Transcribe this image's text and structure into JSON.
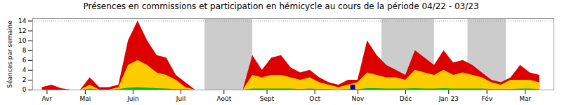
{
  "chart_data": {
    "type": "area",
    "title": "Présences en commissions et participation en hémicycle au cours de la période 04/22 - 03/23",
    "ylabel": "Séances par semaine",
    "x": [
      0,
      1,
      2,
      3,
      4,
      5,
      6,
      7,
      8,
      9,
      10,
      11,
      12,
      13,
      14,
      15,
      16,
      17,
      18,
      19,
      20,
      21,
      22,
      23,
      24,
      25,
      26,
      27,
      28,
      29,
      30,
      31,
      32,
      33,
      34,
      35,
      36,
      37,
      38,
      39,
      40,
      41,
      42,
      43,
      44,
      45,
      46,
      47,
      48,
      49,
      50,
      51,
      52
    ],
    "series": [
      {
        "color": "#dd0000",
        "values": [
          0.5,
          1.0,
          0.3,
          0.0,
          0.0,
          2.5,
          0.5,
          0.5,
          1.0,
          10.0,
          14.0,
          10.0,
          7.0,
          6.5,
          3.0,
          1.5,
          0.0,
          0.0,
          0.0,
          0.0,
          0.0,
          0.0,
          7.0,
          4.0,
          6.5,
          7.0,
          4.5,
          3.5,
          4.0,
          2.5,
          1.5,
          1.0,
          2.0,
          2.0,
          10.0,
          7.0,
          5.0,
          4.0,
          3.0,
          8.0,
          6.5,
          5.0,
          8.0,
          5.5,
          6.0,
          5.0,
          3.5,
          2.0,
          1.5,
          2.5,
          5.0,
          3.5,
          3.0
        ]
      },
      {
        "color": "#ffcc00",
        "values": [
          0.0,
          0.0,
          0.0,
          0.0,
          0.0,
          1.0,
          0.0,
          0.0,
          0.5,
          5.0,
          6.0,
          5.0,
          3.5,
          3.0,
          2.0,
          0.5,
          0.0,
          0.0,
          0.0,
          0.0,
          0.0,
          0.0,
          3.0,
          2.5,
          3.0,
          3.0,
          2.5,
          2.0,
          2.5,
          1.5,
          1.0,
          0.5,
          1.0,
          1.5,
          3.5,
          3.0,
          2.5,
          2.5,
          2.0,
          4.0,
          3.5,
          3.0,
          4.0,
          3.0,
          3.5,
          3.0,
          2.5,
          1.5,
          1.0,
          2.0,
          2.0,
          2.0,
          1.5
        ]
      },
      {
        "color": "#00bb00",
        "values": [
          0.0,
          0.0,
          0.0,
          0.0,
          0.0,
          0.2,
          0.0,
          0.0,
          0.1,
          0.4,
          0.5,
          0.4,
          0.3,
          0.2,
          0.1,
          0.1,
          0.0,
          0.0,
          0.0,
          0.0,
          0.0,
          0.0,
          0.2,
          0.2,
          0.2,
          0.2,
          0.2,
          0.1,
          0.2,
          0.1,
          0.1,
          0.0,
          0.1,
          0.1,
          0.3,
          0.3,
          0.2,
          0.2,
          0.2,
          0.3,
          0.2,
          0.2,
          0.3,
          0.2,
          0.2,
          0.2,
          0.2,
          0.1,
          0.1,
          0.1,
          0.2,
          0.2,
          0.1
        ]
      }
    ],
    "stacked": false,
    "grid": false,
    "xlim": [
      -1.0,
      53.5
    ],
    "xticks": [
      {
        "value": 0.5,
        "label": "Avr"
      },
      {
        "value": 4.5,
        "label": "Mai"
      },
      {
        "value": 9.5,
        "label": "Juin"
      },
      {
        "value": 14.5,
        "label": "Juil"
      },
      {
        "value": 19.0,
        "label": "Août"
      },
      {
        "value": 23.5,
        "label": "Sept"
      },
      {
        "value": 28.5,
        "label": "Oct"
      },
      {
        "value": 33.0,
        "label": "Nov"
      },
      {
        "value": 38.0,
        "label": "Déc"
      },
      {
        "value": 42.5,
        "label": "Jan 23"
      },
      {
        "value": 46.5,
        "label": "Fév"
      },
      {
        "value": 50.5,
        "label": "Mar"
      }
    ],
    "ylim": [
      0,
      14.5
    ],
    "yticks": [
      0,
      2,
      4,
      6,
      8,
      10,
      12,
      14
    ],
    "bands": [
      [
        17.0,
        22.0
      ],
      [
        35.5,
        41.0
      ],
      [
        44.5,
        48.5
      ]
    ],
    "band_color": "#bbbbbb",
    "reference_line": 14,
    "bar": {
      "x": 32.5,
      "value": 1.0,
      "color": "#0000cc"
    }
  }
}
